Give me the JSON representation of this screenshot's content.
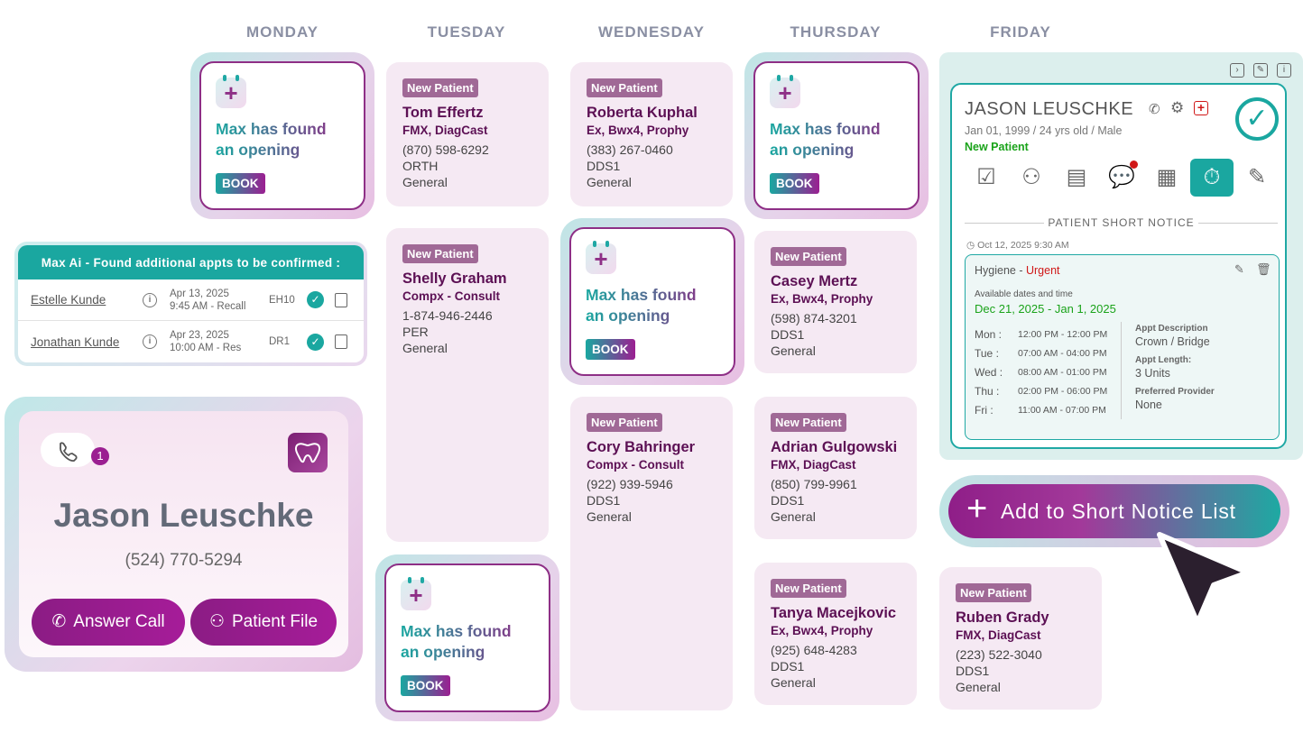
{
  "days": [
    "MONDAY",
    "TUESDAY",
    "WEDNESDAY",
    "THURSDAY",
    "FRIDAY"
  ],
  "opening": {
    "line1": "Max has found",
    "line2": "an opening",
    "book": "BOOK"
  },
  "new_patient_label": "New Patient",
  "patients": {
    "tom": {
      "name": "Tom Effertz",
      "proc": "FMX, DiagCast",
      "phone": "(870) 598-6292",
      "l1": "ORTH",
      "l2": "General"
    },
    "roberta": {
      "name": "Roberta Kuphal",
      "proc": "Ex, Bwx4, Prophy",
      "phone": "(383) 267-0460",
      "l1": "DDS1",
      "l2": "General"
    },
    "shelly": {
      "name": "Shelly Graham",
      "proc": "Compx - Consult",
      "phone": "1-874-946-2446",
      "l1": "PER",
      "l2": "General"
    },
    "casey": {
      "name": "Casey Mertz",
      "proc": "Ex, Bwx4, Prophy",
      "phone": "(598) 874-3201",
      "l1": "DDS1",
      "l2": "General"
    },
    "cory": {
      "name": "Cory Bahringer",
      "proc": "Compx - Consult",
      "phone": "(922) 939-5946",
      "l1": "DDS1",
      "l2": "General"
    },
    "adrian": {
      "name": "Adrian Gulgowski",
      "proc": "FMX, DiagCast",
      "phone": "(850) 799-9961",
      "l1": "DDS1",
      "l2": "General"
    },
    "tanya": {
      "name": "Tanya Macejkovic",
      "proc": "Ex, Bwx4, Prophy",
      "phone": "(925) 648-4283",
      "l1": "DDS1",
      "l2": "General"
    },
    "ruben": {
      "name": "Ruben Grady",
      "proc": "FMX, DiagCast",
      "phone": "(223) 522-3040",
      "l1": "DDS1",
      "l2": "General"
    }
  },
  "maxai": {
    "header": "Max Ai - Found additional appts to be confirmed :",
    "rows": [
      {
        "name": "Estelle Kunde",
        "date": "Apr 13, 2025",
        "time": "9:45 AM - Recall",
        "code": "EH10"
      },
      {
        "name": "Jonathan Kunde",
        "date": "Apr 23, 2025",
        "time": "10:00 AM - Res",
        "code": "DR1"
      }
    ]
  },
  "call": {
    "badge": "1",
    "name": "Jason Leuschke",
    "phone": "(524) 770-5294",
    "answer": "Answer Call",
    "file": "Patient File"
  },
  "profile": {
    "name": "JASON LEUSCHKE",
    "dob": "Jan 01, 1999  /  24 yrs old  /  Male",
    "status": "New Patient",
    "section": "PATIENT SHORT NOTICE",
    "date": "Oct 12, 2025 9:30 AM",
    "type": "Hygiene",
    "urgency": "Urgent",
    "avail_label": "Available dates and time",
    "avail_range": "Dec 21, 2025 - Jan 1, 2025",
    "schedule": [
      {
        "d": "Mon :",
        "t": "12:00 PM - 12:00 PM"
      },
      {
        "d": "Tue :",
        "t": "07:00 AM - 04:00 PM"
      },
      {
        "d": "Wed :",
        "t": "08:00 AM - 01:00 PM"
      },
      {
        "d": "Thu :",
        "t": "02:00 PM - 06:00 PM"
      },
      {
        "d": "Fri :",
        "t": "11:00 AM - 07:00 PM"
      }
    ],
    "desc_label": "Appt Description",
    "desc": "Crown / Bridge",
    "len_label": "Appt Length:",
    "len": "3 Units",
    "prov_label": "Preferred Provider",
    "prov": "None"
  },
  "add_button": "Add to Short Notice List",
  "colors": {
    "teal": "#1aa7a0",
    "purple": "#8e2f86",
    "urgent": "#d01818",
    "green": "#1aa31a"
  }
}
